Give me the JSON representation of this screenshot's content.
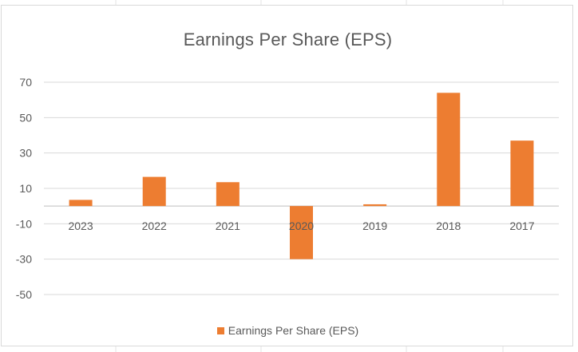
{
  "chart_data": {
    "type": "bar",
    "title": "Earnings Per Share (EPS)",
    "categories": [
      "2023",
      "2022",
      "2021",
      "2020",
      "2019",
      "2018",
      "2017"
    ],
    "series": [
      {
        "name": "Earnings Per Share (EPS)",
        "values": [
          3.5,
          16.5,
          13.5,
          -30,
          1,
          64,
          37
        ],
        "color": "#ed7d31"
      }
    ],
    "yticks": [
      70,
      50,
      30,
      10,
      -10,
      -30,
      -50
    ],
    "ylim": [
      -50,
      70
    ],
    "xlabel": "",
    "ylabel": "",
    "grid": true,
    "legend": "bottom"
  }
}
